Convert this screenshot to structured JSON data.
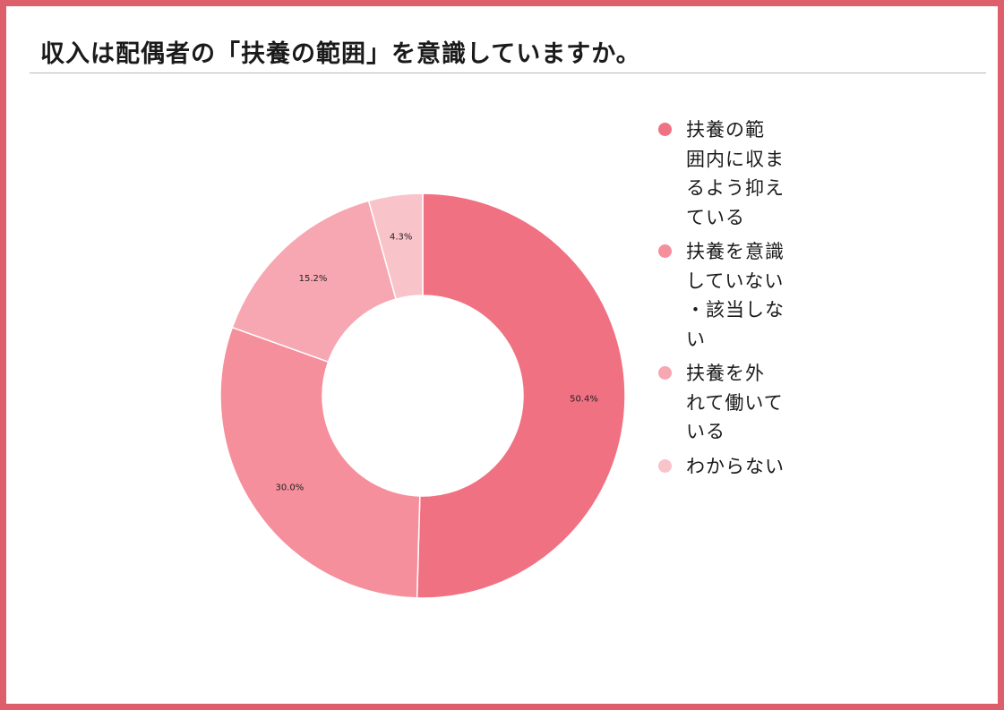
{
  "title": "収入は配偶者の「扶養の範囲」を意識していますか。",
  "colors": {
    "frame": "#dc5f6b",
    "slices": [
      "#f07182",
      "#f58f9b",
      "#f7a7b1",
      "#f9c3ca"
    ]
  },
  "legend": [
    {
      "label": "扶養の範\n囲内に収ま\nるよう抑え\nている"
    },
    {
      "label": "扶養を意識\nしていない\n・該当しな\nい"
    },
    {
      "label": " 扶養を外\nれて働いて\nいる"
    },
    {
      "label": "わからない"
    }
  ],
  "chart_data": {
    "type": "pie",
    "donut": true,
    "categories": [
      "扶養の範囲内に収まるよう抑えている",
      "扶養を意識していない・該当しない",
      "扶養を外れて働いている",
      "わからない"
    ],
    "values": [
      50.4,
      30.0,
      15.2,
      4.3
    ],
    "value_labels": [
      "50.4%",
      "30.0%",
      "15.2%",
      "4.3%"
    ],
    "title": "収入は配偶者の「扶養の範囲」を意識していますか。",
    "legend_position": "right"
  }
}
